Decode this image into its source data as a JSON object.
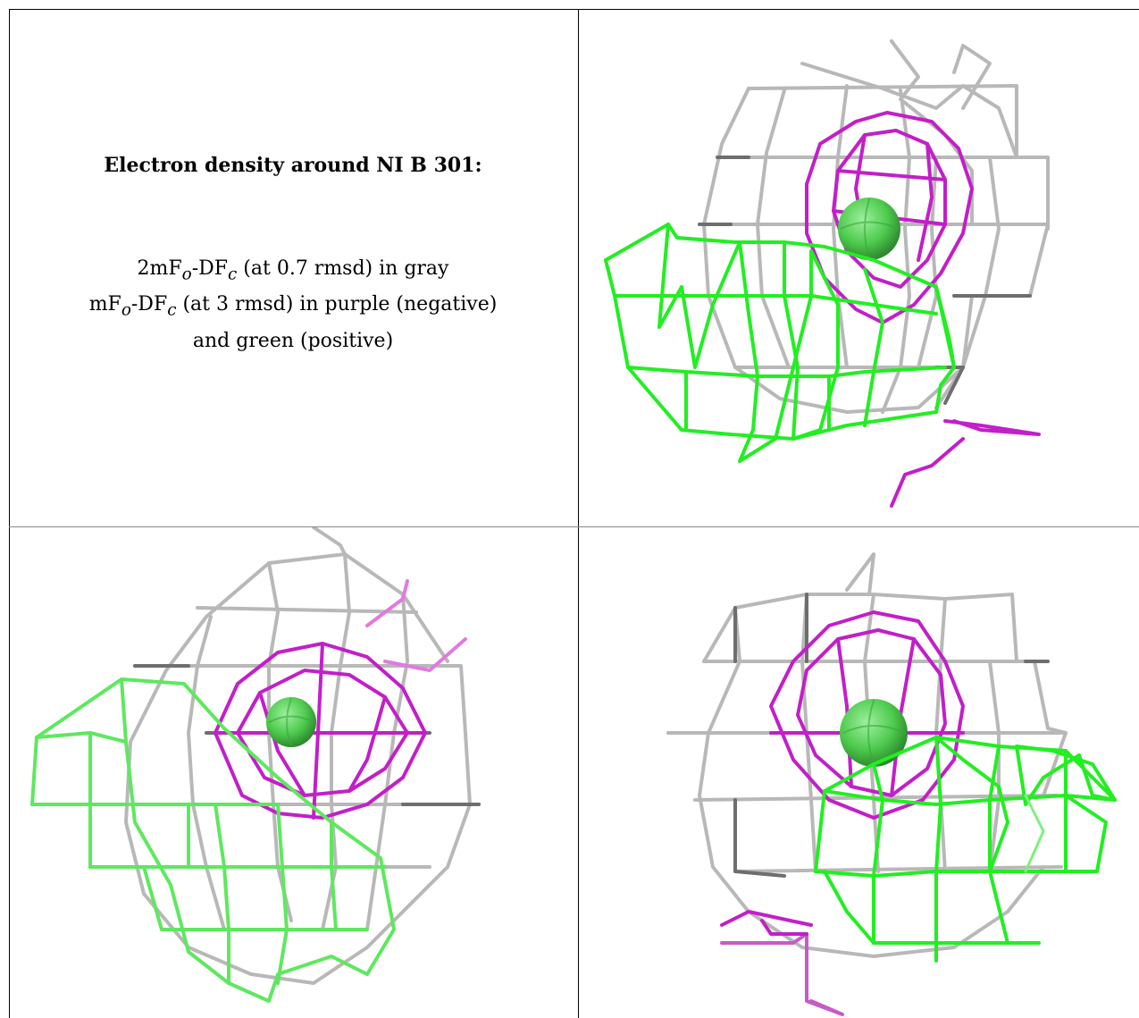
{
  "caption": {
    "title": "Electron density around NI B 301:",
    "line1_prefix": "2mF",
    "line1_sub1": "o",
    "line1_mid": "-DF",
    "line1_sub2": "c",
    "line1_suffix": " (at 0.7 rmsd) in gray",
    "line2_prefix": "mF",
    "line2_sub1": "o",
    "line2_mid": "-DF",
    "line2_sub2": "c",
    "line2_suffix": " (at 3 rmsd) in purple (negative)",
    "line3": "and green (positive)"
  },
  "colors": {
    "gray_mesh": "#b8b8b8",
    "gray_dark": "#6e6e6e",
    "purple_mesh": "#c21fc8",
    "green_mesh": "#22ee22",
    "atom_sphere": "#4ecb4e"
  }
}
